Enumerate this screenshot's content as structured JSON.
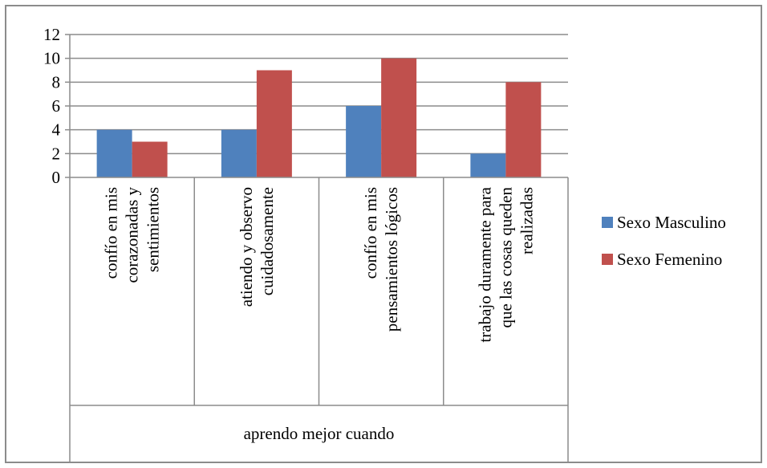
{
  "chart_data": {
    "type": "bar",
    "title": "",
    "xlabel": "aprendo mejor cuando",
    "ylabel": "",
    "ylim": [
      0,
      12
    ],
    "yticks": [
      0,
      2,
      4,
      6,
      8,
      10,
      12
    ],
    "grid": true,
    "legend_position": "right",
    "group_label": "aprendo mejor cuando",
    "categories": [
      [
        "confío en mis",
        "corazonadas y",
        "sentimientos"
      ],
      [
        "atiendo y observo",
        "cuidadosamente"
      ],
      [
        "confío en mis",
        "pensamientos lógicos"
      ],
      [
        "trabajo duramente para",
        "que las cosas queden",
        "realizadas"
      ]
    ],
    "series": [
      {
        "name": "Sexo Masculino",
        "color": "#4f81bd",
        "values": [
          4,
          4,
          6,
          2
        ]
      },
      {
        "name": "Sexo Femenino",
        "color": "#c0504d",
        "values": [
          3,
          9,
          10,
          8
        ]
      }
    ]
  }
}
